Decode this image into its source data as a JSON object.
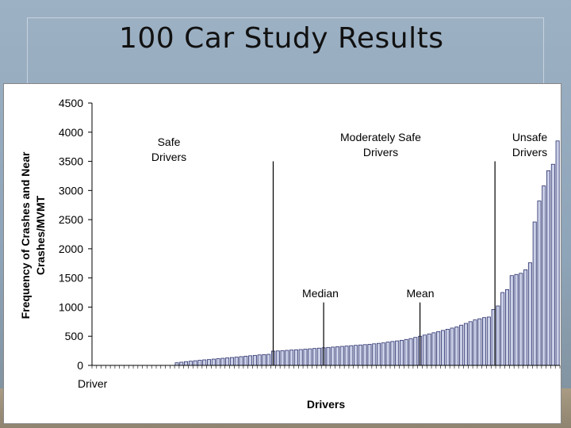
{
  "slide": {
    "title": "100 Car Study Results"
  },
  "chart_data": {
    "type": "bar",
    "xlabel": "Drivers",
    "ylabel_lines": [
      "Frequency of Crashes and Near",
      "Crashes/MVMT"
    ],
    "category_label": "Driver",
    "ylim": [
      0,
      4500
    ],
    "yticks": [
      0,
      500,
      1000,
      1500,
      2000,
      2500,
      3000,
      3500,
      4000,
      4500
    ],
    "values": [
      0,
      0,
      0,
      0,
      0,
      0,
      0,
      0,
      0,
      0,
      0,
      0,
      0,
      0,
      0,
      0,
      0,
      0,
      45,
      55,
      65,
      72,
      80,
      88,
      95,
      100,
      108,
      115,
      122,
      128,
      135,
      142,
      150,
      158,
      165,
      172,
      180,
      185,
      190,
      245,
      248,
      252,
      258,
      263,
      268,
      272,
      278,
      284,
      290,
      296,
      302,
      308,
      314,
      320,
      326,
      332,
      338,
      344,
      350,
      356,
      362,
      370,
      378,
      386,
      400,
      410,
      420,
      430,
      445,
      460,
      480,
      500,
      520,
      540,
      560,
      580,
      600,
      620,
      640,
      660,
      690,
      720,
      750,
      780,
      800,
      820,
      830,
      960,
      1020,
      1250,
      1300,
      1540,
      1560,
      1580,
      1640,
      1760,
      2460,
      2820,
      3080,
      3340,
      3450,
      3850
    ],
    "annotations": [
      {
        "lines": [
          "Safe",
          "Drivers"
        ],
        "marker_index": 39,
        "marker_top": 3500
      },
      {
        "lines": [
          "Median"
        ],
        "marker_index": 50,
        "marker_top": 1080
      },
      {
        "lines": [
          "Mean"
        ],
        "marker_index": 71,
        "marker_top": 1080
      },
      {
        "lines": [
          "Moderately Safe",
          "Drivers"
        ],
        "marker_index": 87,
        "marker_top": 3500
      },
      {
        "lines": [
          "Unsafe",
          "Drivers"
        ],
        "marker_index": null,
        "marker_top": null
      }
    ],
    "colors": {
      "bar_fill": "#c9cfe6",
      "bar_stroke": "#2a2f6b",
      "axis": "#000000"
    }
  }
}
